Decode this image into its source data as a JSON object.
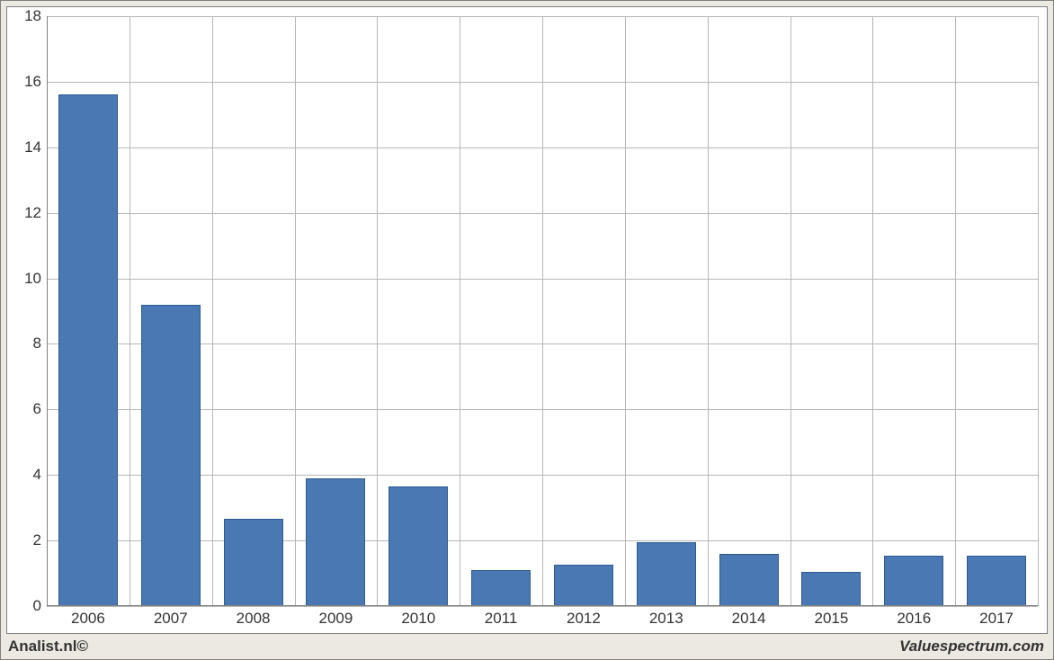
{
  "chart": {
    "type": "bar",
    "categories": [
      "2006",
      "2007",
      "2008",
      "2009",
      "2010",
      "2011",
      "2012",
      "2013",
      "2014",
      "2015",
      "2016",
      "2017"
    ],
    "values": [
      15.6,
      9.2,
      2.65,
      3.9,
      3.65,
      1.1,
      1.25,
      1.95,
      1.6,
      1.05,
      1.55,
      1.55
    ],
    "bar_color": "#4a78b2",
    "bar_border_color": "#2f5a8f",
    "background_color": "#ffffff",
    "outer_background_color": "#ece9e2",
    "grid_color": "#b6b6b6",
    "axis_color": "#808080",
    "ylim": [
      0,
      18
    ],
    "ytick_step": 2,
    "bar_width_ratio": 0.72,
    "tick_fontsize": 17,
    "tick_color": "#333333"
  },
  "footer": {
    "left": "Analist.nl©",
    "right": "Valuespectrum.com",
    "fontsize": 17
  }
}
